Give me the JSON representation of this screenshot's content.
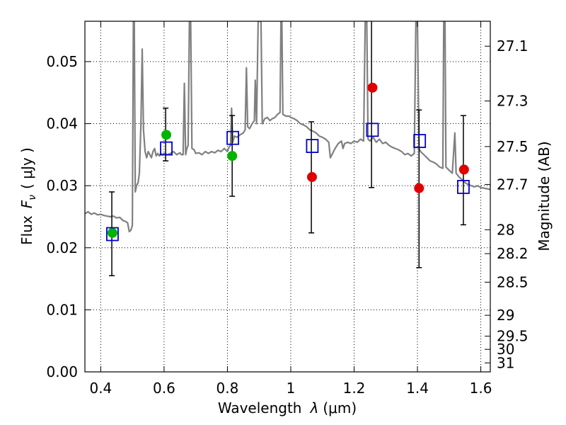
{
  "chart_data": {
    "type": "scatter",
    "title": "",
    "xlabel_text": "Wavelength",
    "xlabel_symbol": "λ",
    "xlabel_unit": "(μm)",
    "ylabel_text": "Flux",
    "ylabel_symbol": "F",
    "ylabel_subscript": "ν",
    "ylabel_unit": "( μJy )",
    "y2label": "Magnitude (AB)",
    "xlim": [
      0.35,
      1.63
    ],
    "ylim": [
      0.0,
      0.0565
    ],
    "grid": true,
    "x_ticks": [
      0.4,
      0.6,
      0.8,
      1.0,
      1.2,
      1.4,
      1.6
    ],
    "x_tick_labels": [
      "0.4",
      "0.6",
      "0.8",
      "1",
      "1.2",
      "1.4",
      "1.6"
    ],
    "y_ticks": [
      0.0,
      0.01,
      0.02,
      0.03,
      0.04,
      0.05
    ],
    "y_tick_labels": [
      "0.00",
      "0.01",
      "0.02",
      "0.03",
      "0.04",
      "0.05"
    ],
    "mag_ticks": [
      27.1,
      27.3,
      27.5,
      27.7,
      28,
      28.2,
      28.5,
      29,
      29.5,
      30,
      31
    ],
    "mag_tick_labels": [
      "27.1",
      "27.3",
      "27.5",
      "27.7",
      "28",
      "28.2",
      "28.5",
      "29",
      "29.5",
      "30",
      "31"
    ],
    "colors": {
      "spectrum": "#808080",
      "model": "#0000cc",
      "green": "#00b400",
      "red": "#e00000",
      "error": "#000000",
      "grid": "#000000"
    },
    "spectrum": [
      [
        0.35,
        0.0255
      ],
      [
        0.36,
        0.0258
      ],
      [
        0.37,
        0.0254
      ],
      [
        0.38,
        0.0256
      ],
      [
        0.39,
        0.0253
      ],
      [
        0.4,
        0.0254
      ],
      [
        0.41,
        0.0252
      ],
      [
        0.42,
        0.0251
      ],
      [
        0.43,
        0.025
      ],
      [
        0.44,
        0.0251
      ],
      [
        0.45,
        0.0248
      ],
      [
        0.46,
        0.0249
      ],
      [
        0.47,
        0.0244
      ],
      [
        0.48,
        0.0242
      ],
      [
        0.485,
        0.024
      ],
      [
        0.49,
        0.0226
      ],
      [
        0.495,
        0.0228
      ],
      [
        0.5,
        0.0236
      ],
      [
        0.503,
        0.0565
      ],
      [
        0.506,
        0.0565
      ],
      [
        0.509,
        0.029
      ],
      [
        0.513,
        0.03
      ],
      [
        0.518,
        0.0305
      ],
      [
        0.522,
        0.032
      ],
      [
        0.527,
        0.04
      ],
      [
        0.531,
        0.052
      ],
      [
        0.535,
        0.039
      ],
      [
        0.54,
        0.0355
      ],
      [
        0.545,
        0.0345
      ],
      [
        0.55,
        0.0355
      ],
      [
        0.555,
        0.035
      ],
      [
        0.56,
        0.0345
      ],
      [
        0.565,
        0.0355
      ],
      [
        0.57,
        0.036
      ],
      [
        0.575,
        0.0348
      ],
      [
        0.58,
        0.0352
      ],
      [
        0.585,
        0.0348
      ],
      [
        0.59,
        0.0352
      ],
      [
        0.595,
        0.035
      ],
      [
        0.6,
        0.0352
      ],
      [
        0.61,
        0.035
      ],
      [
        0.62,
        0.0352
      ],
      [
        0.63,
        0.0355
      ],
      [
        0.64,
        0.035
      ],
      [
        0.65,
        0.0353
      ],
      [
        0.655,
        0.035
      ],
      [
        0.66,
        0.035
      ],
      [
        0.664,
        0.0465
      ],
      [
        0.668,
        0.035
      ],
      [
        0.672,
        0.036
      ],
      [
        0.676,
        0.0365
      ],
      [
        0.68,
        0.0565
      ],
      [
        0.684,
        0.0565
      ],
      [
        0.688,
        0.036
      ],
      [
        0.695,
        0.0358
      ],
      [
        0.7,
        0.0352
      ],
      [
        0.71,
        0.0353
      ],
      [
        0.72,
        0.035
      ],
      [
        0.73,
        0.0355
      ],
      [
        0.74,
        0.0352
      ],
      [
        0.75,
        0.0355
      ],
      [
        0.76,
        0.0353
      ],
      [
        0.77,
        0.0357
      ],
      [
        0.78,
        0.0355
      ],
      [
        0.79,
        0.036
      ],
      [
        0.8,
        0.0355
      ],
      [
        0.805,
        0.0362
      ],
      [
        0.81,
        0.0365
      ],
      [
        0.813,
        0.0425
      ],
      [
        0.817,
        0.037
      ],
      [
        0.822,
        0.038
      ],
      [
        0.83,
        0.0378
      ],
      [
        0.84,
        0.0382
      ],
      [
        0.85,
        0.0385
      ],
      [
        0.856,
        0.039
      ],
      [
        0.86,
        0.049
      ],
      [
        0.864,
        0.0395
      ],
      [
        0.87,
        0.0392
      ],
      [
        0.878,
        0.04
      ],
      [
        0.885,
        0.0405
      ],
      [
        0.888,
        0.047
      ],
      [
        0.892,
        0.04
      ],
      [
        0.897,
        0.0565
      ],
      [
        0.902,
        0.0565
      ],
      [
        0.906,
        0.0565
      ],
      [
        0.91,
        0.04
      ],
      [
        0.918,
        0.0408
      ],
      [
        0.926,
        0.041
      ],
      [
        0.934,
        0.0405
      ],
      [
        0.942,
        0.0408
      ],
      [
        0.95,
        0.041
      ],
      [
        0.958,
        0.0415
      ],
      [
        0.966,
        0.0418
      ],
      [
        0.969,
        0.0565
      ],
      [
        0.972,
        0.0565
      ],
      [
        0.975,
        0.0415
      ],
      [
        0.985,
        0.0412
      ],
      [
        0.995,
        0.0412
      ],
      [
        1.0,
        0.041
      ],
      [
        1.01,
        0.0408
      ],
      [
        1.02,
        0.0405
      ],
      [
        1.03,
        0.04
      ],
      [
        1.04,
        0.0398
      ],
      [
        1.05,
        0.0395
      ],
      [
        1.06,
        0.039
      ],
      [
        1.07,
        0.0388
      ],
      [
        1.08,
        0.0385
      ],
      [
        1.09,
        0.038
      ],
      [
        1.1,
        0.0378
      ],
      [
        1.11,
        0.0375
      ],
      [
        1.12,
        0.037
      ],
      [
        1.125,
        0.0345
      ],
      [
        1.13,
        0.035
      ],
      [
        1.14,
        0.036
      ],
      [
        1.15,
        0.0368
      ],
      [
        1.16,
        0.0372
      ],
      [
        1.165,
        0.036
      ],
      [
        1.17,
        0.0368
      ],
      [
        1.18,
        0.037
      ],
      [
        1.19,
        0.0368
      ],
      [
        1.2,
        0.0372
      ],
      [
        1.21,
        0.037
      ],
      [
        1.22,
        0.0375
      ],
      [
        1.23,
        0.0372
      ],
      [
        1.235,
        0.0565
      ],
      [
        1.24,
        0.0565
      ],
      [
        1.244,
        0.0375
      ],
      [
        1.25,
        0.0372
      ],
      [
        1.26,
        0.0378
      ],
      [
        1.27,
        0.037
      ],
      [
        1.28,
        0.0375
      ],
      [
        1.29,
        0.0368
      ],
      [
        1.3,
        0.037
      ],
      [
        1.31,
        0.0365
      ],
      [
        1.32,
        0.0362
      ],
      [
        1.33,
        0.036
      ],
      [
        1.34,
        0.0358
      ],
      [
        1.35,
        0.0355
      ],
      [
        1.36,
        0.035
      ],
      [
        1.37,
        0.0352
      ],
      [
        1.38,
        0.0348
      ],
      [
        1.39,
        0.0352
      ],
      [
        1.395,
        0.0565
      ],
      [
        1.4,
        0.0565
      ],
      [
        1.405,
        0.036
      ],
      [
        1.41,
        0.0355
      ],
      [
        1.42,
        0.035
      ],
      [
        1.43,
        0.0345
      ],
      [
        1.44,
        0.034
      ],
      [
        1.45,
        0.0338
      ],
      [
        1.46,
        0.0335
      ],
      [
        1.47,
        0.033
      ],
      [
        1.48,
        0.0328
      ],
      [
        1.483,
        0.0565
      ],
      [
        1.487,
        0.0565
      ],
      [
        1.49,
        0.033
      ],
      [
        1.5,
        0.0325
      ],
      [
        1.51,
        0.032
      ],
      [
        1.518,
        0.0385
      ],
      [
        1.522,
        0.032
      ],
      [
        1.53,
        0.0315
      ],
      [
        1.54,
        0.031
      ],
      [
        1.55,
        0.0305
      ],
      [
        1.56,
        0.0302
      ],
      [
        1.57,
        0.03
      ],
      [
        1.58,
        0.0298
      ],
      [
        1.59,
        0.03
      ],
      [
        1.6,
        0.0297
      ],
      [
        1.61,
        0.0296
      ],
      [
        1.62,
        0.0295
      ],
      [
        1.63,
        0.0294
      ]
    ],
    "error_bars": [
      {
        "x": 0.435,
        "low": 0.0155,
        "high": 0.029
      },
      {
        "x": 0.605,
        "low": 0.034,
        "high": 0.0425
      },
      {
        "x": 0.815,
        "low": 0.0283,
        "high": 0.0413
      },
      {
        "x": 1.065,
        "low": 0.0224,
        "high": 0.0403
      },
      {
        "x": 1.255,
        "low": 0.0297,
        "high": 0.0565
      },
      {
        "x": 1.405,
        "low": 0.0168,
        "high": 0.0422
      },
      {
        "x": 1.545,
        "low": 0.0237,
        "high": 0.0413
      }
    ],
    "series": [
      {
        "name": "model-squares",
        "marker": "square",
        "points": [
          {
            "x": 0.437,
            "y": 0.0222
          },
          {
            "x": 0.607,
            "y": 0.036
          },
          {
            "x": 0.817,
            "y": 0.0377
          },
          {
            "x": 1.068,
            "y": 0.0364
          },
          {
            "x": 1.258,
            "y": 0.039
          },
          {
            "x": 1.407,
            "y": 0.0372
          },
          {
            "x": 1.545,
            "y": 0.0298
          }
        ]
      },
      {
        "name": "green-points",
        "marker": "circle",
        "points": [
          {
            "x": 0.437,
            "y": 0.0224
          },
          {
            "x": 0.607,
            "y": 0.0382
          },
          {
            "x": 0.815,
            "y": 0.0348
          }
        ]
      },
      {
        "name": "red-points",
        "marker": "circle",
        "points": [
          {
            "x": 1.067,
            "y": 0.0314
          },
          {
            "x": 1.258,
            "y": 0.0458
          },
          {
            "x": 1.405,
            "y": 0.0296
          },
          {
            "x": 1.547,
            "y": 0.0326
          }
        ]
      }
    ]
  }
}
